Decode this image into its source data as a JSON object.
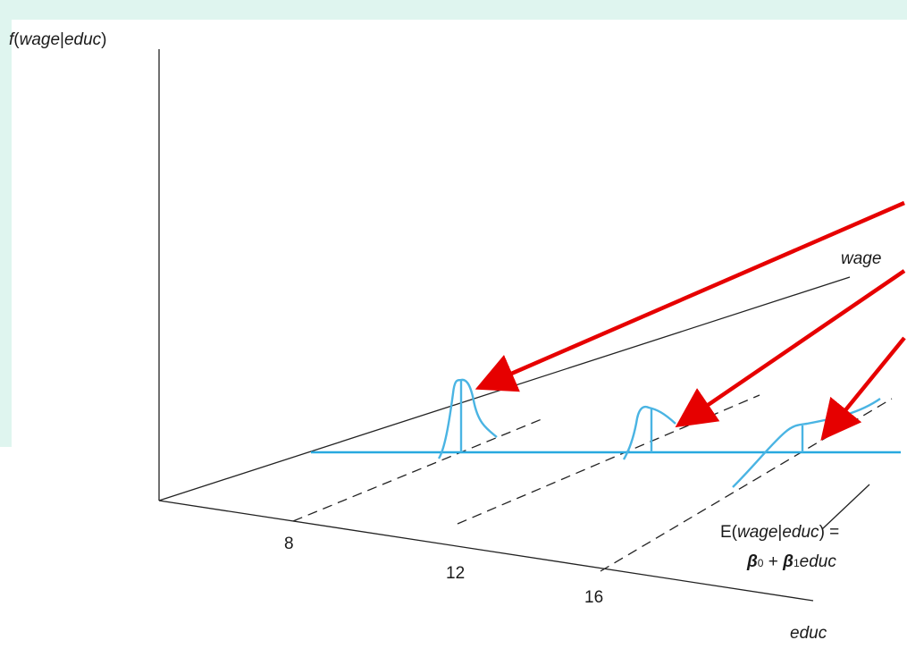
{
  "labels": {
    "y_axis_label": "f(wage|educ)",
    "wage_label": "wage",
    "educ_label": "educ",
    "ticks": [
      "8",
      "12",
      "16"
    ],
    "expectation_line1": "E(wage|educ) =",
    "expectation_line2": "β₀ + β₁educ"
  },
  "colors": {
    "regression": "#29a9df",
    "density": "#4ab4e3",
    "arrows": "#e60000",
    "background_band": "#dff5ef"
  }
}
